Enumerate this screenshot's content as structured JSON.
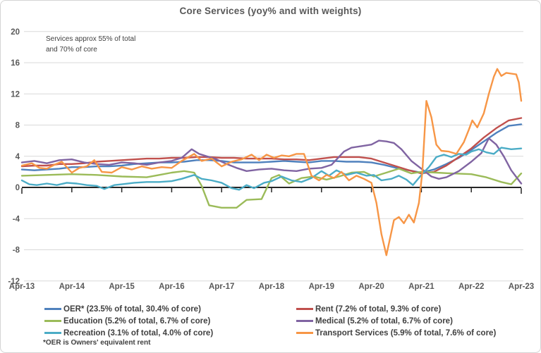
{
  "chart_data": {
    "type": "line",
    "title": "Core Services (yoy% and with weights)",
    "annotation": "Services approx 55% of total\nand 70% of core",
    "footnote": "*OER is Owners' equivalent rent",
    "x_axis": {
      "tick_labels": [
        "Apr-13",
        "Apr-14",
        "Apr-15",
        "Apr-16",
        "Apr-17",
        "Apr-18",
        "Apr-19",
        "Apr-20",
        "Apr-21",
        "Apr-22",
        "Apr-23"
      ],
      "unit": "years since Apr-2013",
      "range": [
        0,
        10
      ]
    },
    "y_axis": {
      "min": -12,
      "max": 20,
      "step": 4,
      "tick_labels": [
        "20",
        "16",
        "12",
        "8",
        "4",
        "0",
        "-4",
        "-8",
        "-12"
      ]
    },
    "grid": true,
    "legend_position": "bottom-two-columns",
    "layout": {
      "grid_color": "#d9d9d9",
      "axis_color": "#262626",
      "text_color": "#595959",
      "legend_text_color": "#404040"
    },
    "series": [
      {
        "key": "oer",
        "name": "OER* (23.5% of total, 30.4% of core)",
        "color": "#4F81BD",
        "legend_column": "left",
        "points": [
          [
            0,
            2.3
          ],
          [
            0.25,
            2.2
          ],
          [
            0.5,
            2.3
          ],
          [
            0.75,
            2.4
          ],
          [
            1,
            2.6
          ],
          [
            1.25,
            2.6
          ],
          [
            1.5,
            2.7
          ],
          [
            1.75,
            2.7
          ],
          [
            2,
            2.8
          ],
          [
            2.25,
            3.0
          ],
          [
            2.5,
            3.1
          ],
          [
            2.75,
            3.2
          ],
          [
            3,
            3.2
          ],
          [
            3.25,
            3.3
          ],
          [
            3.5,
            3.5
          ],
          [
            3.75,
            3.5
          ],
          [
            4,
            3.4
          ],
          [
            4.25,
            3.2
          ],
          [
            4.5,
            3.2
          ],
          [
            4.75,
            3.2
          ],
          [
            5,
            3.3
          ],
          [
            5.25,
            3.4
          ],
          [
            5.5,
            3.3
          ],
          [
            5.75,
            3.2
          ],
          [
            6,
            3.4
          ],
          [
            6.25,
            3.4
          ],
          [
            6.5,
            3.3
          ],
          [
            6.75,
            3.3
          ],
          [
            7,
            3.2
          ],
          [
            7.25,
            2.9
          ],
          [
            7.5,
            2.5
          ],
          [
            7.75,
            2.2
          ],
          [
            8,
            1.9
          ],
          [
            8.25,
            2.3
          ],
          [
            8.5,
            3.0
          ],
          [
            8.75,
            3.8
          ],
          [
            9,
            4.8
          ],
          [
            9.25,
            5.9
          ],
          [
            9.5,
            7.0
          ],
          [
            9.75,
            7.9
          ],
          [
            10,
            8.1
          ]
        ]
      },
      {
        "key": "rent",
        "name": "Rent (7.2% of total, 9.3% of core)",
        "color": "#C0504D",
        "legend_column": "right",
        "points": [
          [
            0,
            2.7
          ],
          [
            0.25,
            2.8
          ],
          [
            0.5,
            2.8
          ],
          [
            0.75,
            3.0
          ],
          [
            1,
            3.0
          ],
          [
            1.25,
            3.1
          ],
          [
            1.5,
            3.3
          ],
          [
            1.75,
            3.4
          ],
          [
            2,
            3.5
          ],
          [
            2.25,
            3.6
          ],
          [
            2.5,
            3.7
          ],
          [
            2.75,
            3.7
          ],
          [
            3,
            3.8
          ],
          [
            3.25,
            3.8
          ],
          [
            3.5,
            3.9
          ],
          [
            3.75,
            3.9
          ],
          [
            4,
            3.8
          ],
          [
            4.25,
            3.8
          ],
          [
            4.5,
            3.7
          ],
          [
            4.75,
            3.7
          ],
          [
            5,
            3.7
          ],
          [
            5.25,
            3.6
          ],
          [
            5.5,
            3.6
          ],
          [
            5.75,
            3.5
          ],
          [
            6,
            3.7
          ],
          [
            6.25,
            3.9
          ],
          [
            6.5,
            3.9
          ],
          [
            6.75,
            3.9
          ],
          [
            7,
            3.7
          ],
          [
            7.25,
            3.2
          ],
          [
            7.5,
            2.7
          ],
          [
            7.75,
            2.2
          ],
          [
            8,
            1.8
          ],
          [
            8.25,
            2.0
          ],
          [
            8.5,
            2.8
          ],
          [
            8.75,
            3.9
          ],
          [
            9,
            5.0
          ],
          [
            9.25,
            6.4
          ],
          [
            9.5,
            7.6
          ],
          [
            9.75,
            8.6
          ],
          [
            10,
            8.9
          ]
        ]
      },
      {
        "key": "education",
        "name": "Education (5.2% of total, 6.7% of core)",
        "color": "#9BBB59",
        "legend_column": "left",
        "points": [
          [
            0,
            1.5
          ],
          [
            0.5,
            1.6
          ],
          [
            1,
            1.7
          ],
          [
            1.5,
            1.6
          ],
          [
            2,
            1.4
          ],
          [
            2.5,
            1.3
          ],
          [
            2.75,
            1.6
          ],
          [
            3,
            1.9
          ],
          [
            3.25,
            2.1
          ],
          [
            3.45,
            1.9
          ],
          [
            3.6,
            0.2
          ],
          [
            3.75,
            -2.3
          ],
          [
            4,
            -2.6
          ],
          [
            4.3,
            -2.6
          ],
          [
            4.5,
            -1.6
          ],
          [
            4.8,
            -1.5
          ],
          [
            5,
            1.2
          ],
          [
            5.15,
            1.6
          ],
          [
            5.35,
            0.5
          ],
          [
            5.6,
            1.2
          ],
          [
            5.85,
            1.4
          ],
          [
            6.1,
            1.0
          ],
          [
            6.35,
            1.4
          ],
          [
            6.6,
            1.9
          ],
          [
            6.85,
            2.0
          ],
          [
            7.05,
            1.4
          ],
          [
            7.3,
            1.9
          ],
          [
            7.55,
            2.4
          ],
          [
            7.8,
            1.8
          ],
          [
            8,
            2.0
          ],
          [
            8.3,
            1.9
          ],
          [
            8.6,
            1.8
          ],
          [
            9,
            1.7
          ],
          [
            9.3,
            1.3
          ],
          [
            9.6,
            0.7
          ],
          [
            9.8,
            0.4
          ],
          [
            10,
            1.8
          ]
        ]
      },
      {
        "key": "medical",
        "name": "Medical (5.2% of total, 6.7% of core)",
        "color": "#8064A2",
        "legend_column": "right",
        "points": [
          [
            0,
            3.2
          ],
          [
            0.25,
            3.4
          ],
          [
            0.5,
            3.1
          ],
          [
            0.75,
            3.5
          ],
          [
            1,
            3.6
          ],
          [
            1.25,
            3.2
          ],
          [
            1.5,
            3.0
          ],
          [
            1.75,
            2.9
          ],
          [
            2,
            3.2
          ],
          [
            2.25,
            3.1
          ],
          [
            2.5,
            2.9
          ],
          [
            2.75,
            3.2
          ],
          [
            3,
            3.4
          ],
          [
            3.2,
            3.8
          ],
          [
            3.4,
            4.9
          ],
          [
            3.55,
            4.3
          ],
          [
            3.7,
            4.0
          ],
          [
            3.9,
            3.6
          ],
          [
            4.1,
            3.0
          ],
          [
            4.3,
            2.5
          ],
          [
            4.5,
            2.1
          ],
          [
            4.75,
            2.3
          ],
          [
            5,
            2.4
          ],
          [
            5.25,
            2.2
          ],
          [
            5.5,
            2.1
          ],
          [
            5.75,
            2.4
          ],
          [
            6,
            2.5
          ],
          [
            6.2,
            2.9
          ],
          [
            6.45,
            4.6
          ],
          [
            6.6,
            5.1
          ],
          [
            6.8,
            5.3
          ],
          [
            7,
            5.5
          ],
          [
            7.15,
            6.0
          ],
          [
            7.3,
            5.9
          ],
          [
            7.45,
            5.7
          ],
          [
            7.6,
            4.9
          ],
          [
            7.8,
            3.4
          ],
          [
            8,
            2.4
          ],
          [
            8.2,
            1.4
          ],
          [
            8.35,
            1.1
          ],
          [
            8.5,
            1.3
          ],
          [
            8.75,
            2.1
          ],
          [
            9,
            3.3
          ],
          [
            9.2,
            4.4
          ],
          [
            9.35,
            6.3
          ],
          [
            9.5,
            5.5
          ],
          [
            9.65,
            4.0
          ],
          [
            9.8,
            2.2
          ],
          [
            10,
            0.5
          ]
        ]
      },
      {
        "key": "recreation",
        "name": "Recreation (3.1% of total, 4.0% of core)",
        "color": "#4BACC6",
        "legend_column": "left",
        "points": [
          [
            0,
            0.9
          ],
          [
            0.15,
            0.4
          ],
          [
            0.3,
            0.3
          ],
          [
            0.5,
            0.5
          ],
          [
            0.7,
            0.3
          ],
          [
            0.9,
            0.6
          ],
          [
            1.1,
            0.5
          ],
          [
            1.3,
            0.3
          ],
          [
            1.5,
            0.2
          ],
          [
            1.65,
            -0.2
          ],
          [
            1.85,
            0.3
          ],
          [
            2,
            0.4
          ],
          [
            2.25,
            0.6
          ],
          [
            2.5,
            0.7
          ],
          [
            2.75,
            0.7
          ],
          [
            3,
            0.8
          ],
          [
            3.2,
            1.1
          ],
          [
            3.45,
            1.6
          ],
          [
            3.6,
            1.1
          ],
          [
            3.8,
            0.9
          ],
          [
            4,
            0.6
          ],
          [
            4.2,
            -0.1
          ],
          [
            4.35,
            -0.3
          ],
          [
            4.5,
            0.3
          ],
          [
            4.65,
            -0.1
          ],
          [
            4.85,
            0.6
          ],
          [
            5,
            0.8
          ],
          [
            5.2,
            1.4
          ],
          [
            5.4,
            0.9
          ],
          [
            5.6,
            0.7
          ],
          [
            5.8,
            1.2
          ],
          [
            6,
            2.1
          ],
          [
            6.15,
            1.5
          ],
          [
            6.3,
            2.2
          ],
          [
            6.5,
            1.6
          ],
          [
            6.7,
            1.9
          ],
          [
            6.9,
            1.5
          ],
          [
            7.05,
            1.6
          ],
          [
            7.2,
            0.9
          ],
          [
            7.4,
            1.1
          ],
          [
            7.55,
            1.5
          ],
          [
            7.7,
            1.0
          ],
          [
            7.83,
            0.3
          ],
          [
            8,
            1.6
          ],
          [
            8.15,
            2.6
          ],
          [
            8.3,
            3.9
          ],
          [
            8.45,
            4.2
          ],
          [
            8.6,
            3.9
          ],
          [
            8.75,
            4.3
          ],
          [
            8.9,
            4.2
          ],
          [
            9,
            4.6
          ],
          [
            9.15,
            4.9
          ],
          [
            9.3,
            4.5
          ],
          [
            9.45,
            4.3
          ],
          [
            9.6,
            5.1
          ],
          [
            9.8,
            4.9
          ],
          [
            10,
            5.0
          ]
        ]
      },
      {
        "key": "transport",
        "name": "Transport Services (5.9% of total, 7.6% of core)",
        "color": "#F79646",
        "legend_column": "right",
        "points": [
          [
            0,
            2.8
          ],
          [
            0.2,
            3.1
          ],
          [
            0.35,
            2.5
          ],
          [
            0.5,
            2.4
          ],
          [
            0.65,
            2.9
          ],
          [
            0.8,
            3.3
          ],
          [
            1,
            1.9
          ],
          [
            1.15,
            2.5
          ],
          [
            1.3,
            2.7
          ],
          [
            1.45,
            3.5
          ],
          [
            1.6,
            2.0
          ],
          [
            1.8,
            1.9
          ],
          [
            2,
            2.6
          ],
          [
            2.2,
            2.3
          ],
          [
            2.4,
            2.7
          ],
          [
            2.6,
            2.4
          ],
          [
            2.8,
            2.6
          ],
          [
            3,
            2.5
          ],
          [
            3.2,
            3.4
          ],
          [
            3.45,
            4.3
          ],
          [
            3.6,
            3.4
          ],
          [
            3.8,
            3.7
          ],
          [
            4,
            2.7
          ],
          [
            4.2,
            3.3
          ],
          [
            4.4,
            3.6
          ],
          [
            4.6,
            4.2
          ],
          [
            4.75,
            3.5
          ],
          [
            4.9,
            4.2
          ],
          [
            5.05,
            3.8
          ],
          [
            5.2,
            4.1
          ],
          [
            5.35,
            4.0
          ],
          [
            5.5,
            4.3
          ],
          [
            5.65,
            4.3
          ],
          [
            5.8,
            1.5
          ],
          [
            5.95,
            0.9
          ],
          [
            6.1,
            1.6
          ],
          [
            6.25,
            1.2
          ],
          [
            6.4,
            2.0
          ],
          [
            6.55,
            0.9
          ],
          [
            6.7,
            1.5
          ],
          [
            6.85,
            1.1
          ],
          [
            7,
            0.6
          ],
          [
            7.1,
            -2.0
          ],
          [
            7.2,
            -6.0
          ],
          [
            7.3,
            -8.7
          ],
          [
            7.45,
            -4.2
          ],
          [
            7.55,
            -3.8
          ],
          [
            7.65,
            -4.6
          ],
          [
            7.75,
            -3.5
          ],
          [
            7.85,
            -4.5
          ],
          [
            7.95,
            -2.0
          ],
          [
            8.02,
            2.0
          ],
          [
            8.1,
            11.1
          ],
          [
            8.2,
            9.0
          ],
          [
            8.3,
            5.5
          ],
          [
            8.4,
            4.7
          ],
          [
            8.55,
            4.6
          ],
          [
            8.7,
            4.3
          ],
          [
            8.85,
            5.8
          ],
          [
            8.95,
            7.4
          ],
          [
            9.02,
            8.6
          ],
          [
            9.12,
            7.7
          ],
          [
            9.25,
            9.5
          ],
          [
            9.35,
            12.0
          ],
          [
            9.45,
            14.2
          ],
          [
            9.52,
            15.2
          ],
          [
            9.6,
            14.3
          ],
          [
            9.7,
            14.7
          ],
          [
            9.8,
            14.6
          ],
          [
            9.9,
            14.5
          ],
          [
            9.95,
            13.5
          ],
          [
            10,
            11.1
          ]
        ]
      }
    ]
  }
}
